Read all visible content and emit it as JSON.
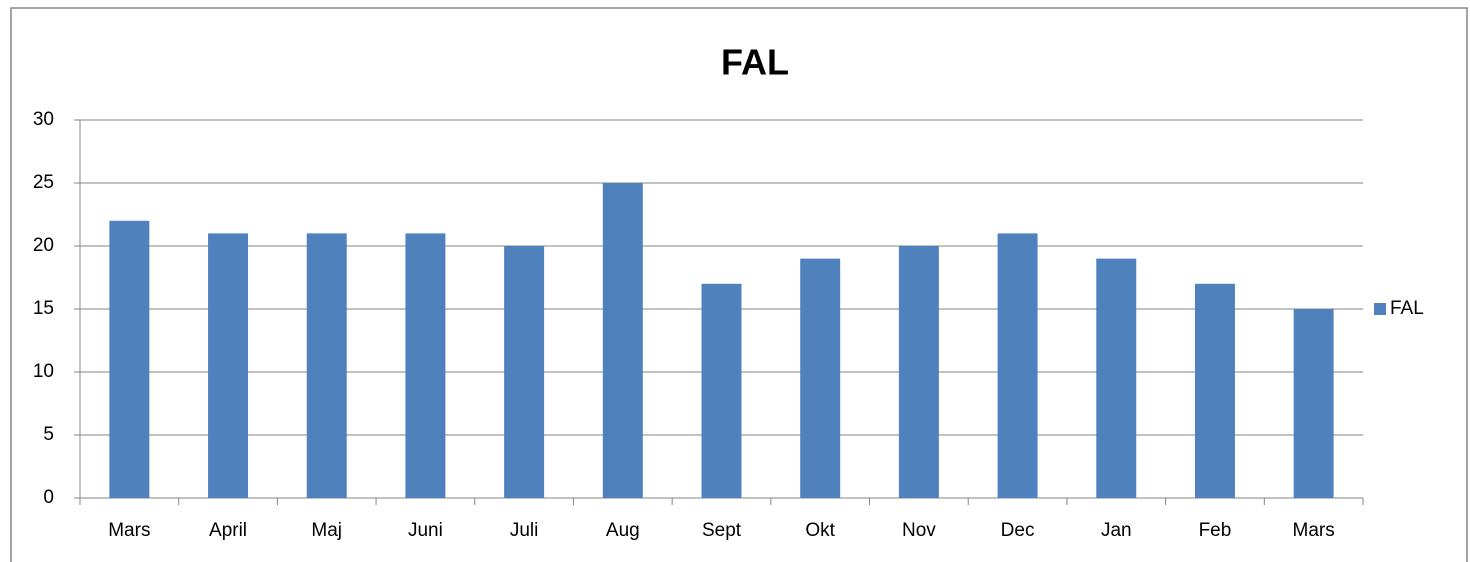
{
  "chart_data": {
    "type": "bar",
    "title": "FAL",
    "categories": [
      "Mars",
      "April",
      "Maj",
      "Juni",
      "Juli",
      "Aug",
      "Sept",
      "Okt",
      "Nov",
      "Dec",
      "Jan",
      "Feb",
      "Mars"
    ],
    "series": [
      {
        "name": "FAL",
        "color": "#4f81bd",
        "values": [
          22,
          21,
          21,
          21,
          20,
          25,
          17,
          19,
          20,
          21,
          19,
          17,
          15
        ]
      }
    ],
    "ylim": [
      0,
      30
    ],
    "yticks": [
      0,
      5,
      10,
      15,
      20,
      25,
      30
    ],
    "grid": true,
    "legend": "right"
  }
}
